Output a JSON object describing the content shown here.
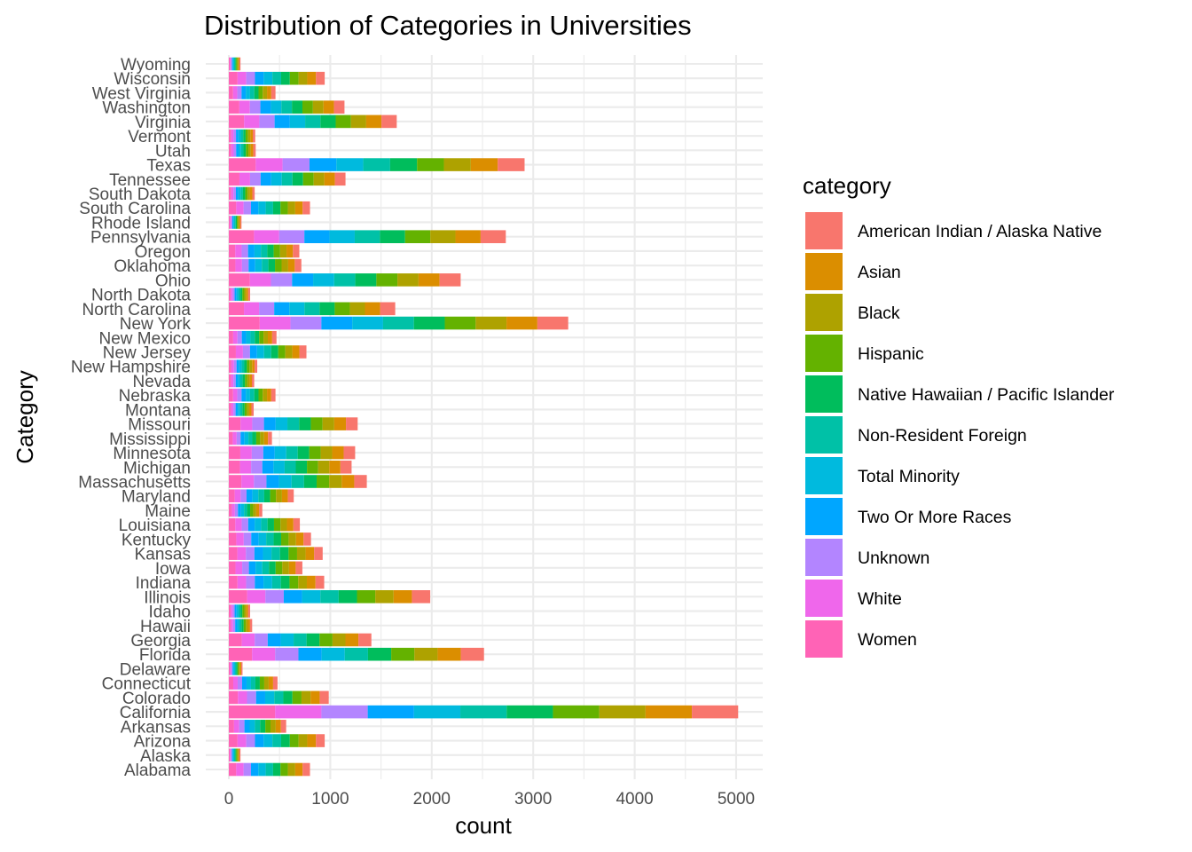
{
  "chart_data": {
    "type": "bar",
    "orientation": "horizontal",
    "stacked": true,
    "title": "Distribution of Categories in Universities",
    "xlabel": "count",
    "ylabel": "Category",
    "xlim": [
      0,
      5000
    ],
    "x_ticks": [
      "0",
      "1000",
      "2000",
      "3000",
      "4000",
      "5000"
    ],
    "grid": true,
    "legend": {
      "title": "category",
      "position": "right",
      "entries": [
        {
          "name": "American Indian / Alaska Native",
          "color": "#F8766D"
        },
        {
          "name": "Asian",
          "color": "#DB8E00"
        },
        {
          "name": "Black",
          "color": "#AEA200"
        },
        {
          "name": "Hispanic",
          "color": "#64B200"
        },
        {
          "name": "Native Hawaiian / Pacific Islander",
          "color": "#00BD5C"
        },
        {
          "name": "Non-Resident Foreign",
          "color": "#00C1A7"
        },
        {
          "name": "Total Minority",
          "color": "#00BADE"
        },
        {
          "name": "Two Or More Races",
          "color": "#00A6FF"
        },
        {
          "name": "Unknown",
          "color": "#B385FF"
        },
        {
          "name": "White",
          "color": "#EF67EB"
        },
        {
          "name": "Women",
          "color": "#FF63B6"
        }
      ]
    },
    "categories": [
      "Alabama",
      "Alaska",
      "Arizona",
      "Arkansas",
      "California",
      "Colorado",
      "Connecticut",
      "Delaware",
      "Florida",
      "Georgia",
      "Hawaii",
      "Idaho",
      "Illinois",
      "Indiana",
      "Iowa",
      "Kansas",
      "Kentucky",
      "Louisiana",
      "Maine",
      "Maryland",
      "Massachusetts",
      "Michigan",
      "Minnesota",
      "Mississippi",
      "Missouri",
      "Montana",
      "Nebraska",
      "Nevada",
      "New Hampshire",
      "New Jersey",
      "New Mexico",
      "New York",
      "North Carolina",
      "North Dakota",
      "Ohio",
      "Oklahoma",
      "Oregon",
      "Pennsylvania",
      "Rhode Island",
      "South Carolina",
      "South Dakota",
      "Tennessee",
      "Texas",
      "Utah",
      "Vermont",
      "Virginia",
      "Washington",
      "West Virginia",
      "Wisconsin",
      "Wyoming"
    ],
    "totals": [
      800,
      115,
      945,
      565,
      5020,
      985,
      480,
      135,
      2515,
      1405,
      230,
      210,
      1985,
      940,
      725,
      925,
      810,
      700,
      330,
      640,
      1360,
      1210,
      1245,
      425,
      1270,
      245,
      460,
      250,
      280,
      765,
      470,
      3345,
      1640,
      210,
      2285,
      715,
      695,
      2730,
      125,
      800,
      255,
      1150,
      2915,
      265,
      260,
      1655,
      1140,
      460,
      945,
      115
    ]
  }
}
